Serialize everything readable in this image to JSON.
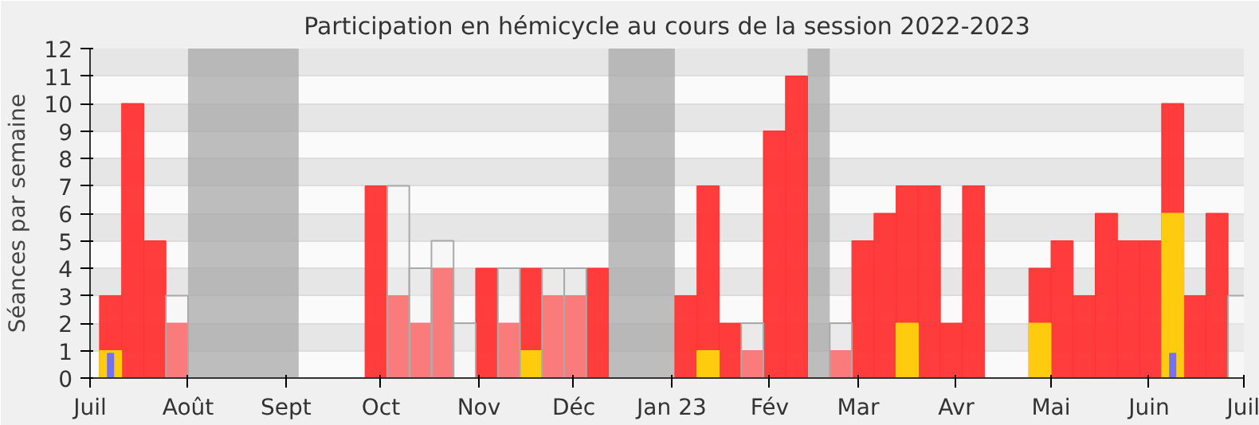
{
  "chart_data": {
    "type": "bar",
    "title": "Participation en hémicycle au cours de la session 2022-2023",
    "ylabel": "Séances par semaine",
    "x": [
      "2022-07-04",
      "2022-07-11",
      "2022-07-18",
      "2022-07-25",
      "2022-08-01",
      "2022-08-08",
      "2022-08-15",
      "2022-08-22",
      "2022-08-29",
      "2022-09-05",
      "2022-09-12",
      "2022-09-19",
      "2022-09-26",
      "2022-10-03",
      "2022-10-10",
      "2022-10-17",
      "2022-10-24",
      "2022-10-31",
      "2022-11-07",
      "2022-11-14",
      "2022-11-21",
      "2022-11-28",
      "2022-12-05",
      "2022-12-12",
      "2022-12-19",
      "2022-12-26",
      "2023-01-02",
      "2023-01-09",
      "2023-01-16",
      "2023-01-23",
      "2023-01-30",
      "2023-02-06",
      "2023-02-13",
      "2023-02-20",
      "2023-02-27",
      "2023-03-06",
      "2023-03-13",
      "2023-03-20",
      "2023-03-27",
      "2023-04-03",
      "2023-04-10",
      "2023-04-17",
      "2023-04-24",
      "2023-05-01",
      "2023-05-08",
      "2023-05-15",
      "2023-05-22",
      "2023-05-29",
      "2023-06-05",
      "2023-06-12",
      "2023-06-19",
      "2023-06-26"
    ],
    "series": [
      {
        "color": "#f2f2f2",
        "values": [
          null,
          null,
          null,
          3,
          null,
          null,
          null,
          null,
          null,
          null,
          null,
          null,
          null,
          7,
          4,
          5,
          2,
          null,
          4,
          null,
          4,
          4,
          null,
          null,
          null,
          null,
          null,
          null,
          null,
          2,
          null,
          null,
          null,
          2,
          null,
          null,
          null,
          null,
          null,
          null,
          null,
          null,
          null,
          null,
          null,
          null,
          null,
          null,
          null,
          null,
          null,
          3
        ]
      },
      {
        "color": "#ff3333",
        "values": [
          3,
          10,
          5,
          2,
          null,
          null,
          null,
          null,
          null,
          0,
          0,
          0,
          7,
          3,
          2,
          4,
          0,
          4,
          2,
          4,
          3,
          3,
          4,
          null,
          null,
          null,
          3,
          7,
          2,
          1,
          9,
          11,
          null,
          1,
          5,
          6,
          7,
          7,
          2,
          7,
          0,
          0,
          4,
          5,
          3,
          6,
          5,
          5,
          10,
          3,
          6,
          0
        ]
      },
      {
        "color": "#ffd30c",
        "values": [
          1,
          null,
          null,
          null,
          null,
          null,
          null,
          null,
          null,
          null,
          null,
          null,
          null,
          null,
          null,
          null,
          null,
          null,
          null,
          1,
          null,
          null,
          null,
          null,
          null,
          null,
          null,
          1,
          null,
          null,
          null,
          null,
          null,
          null,
          null,
          null,
          2,
          null,
          null,
          null,
          null,
          null,
          2,
          null,
          null,
          null,
          null,
          null,
          6,
          null,
          null,
          null
        ]
      },
      {
        "color": "#6b6bff",
        "values": [
          0.9,
          null,
          null,
          null,
          null,
          null,
          null,
          null,
          null,
          null,
          null,
          null,
          null,
          null,
          null,
          null,
          null,
          null,
          null,
          null,
          null,
          null,
          null,
          null,
          null,
          null,
          null,
          null,
          null,
          null,
          null,
          null,
          null,
          null,
          null,
          null,
          null,
          null,
          null,
          null,
          null,
          null,
          null,
          null,
          null,
          null,
          null,
          null,
          0.9,
          null,
          null,
          null
        ]
      }
    ],
    "bands": [
      {
        "axis": "x",
        "from": "2022-08-01",
        "to": "2022-09-05",
        "color": "#a8a8a8"
      },
      {
        "axis": "x",
        "from": "2022-12-12",
        "to": "2023-01-02",
        "color": "#a8a8a8"
      },
      {
        "axis": "x",
        "from": "2023-02-13",
        "to": "2023-02-20",
        "color": "#a8a8a8"
      }
    ],
    "xlim": [
      "2022-07-01",
      "2023-07-01"
    ],
    "xticks": [
      {
        "value": "2022-07-01",
        "label": "Juil"
      },
      {
        "value": "2022-08-01",
        "label": "Août"
      },
      {
        "value": "2022-09-01",
        "label": "Sept"
      },
      {
        "value": "2022-10-01",
        "label": "Oct"
      },
      {
        "value": "2022-11-01",
        "label": "Nov"
      },
      {
        "value": "2022-12-01",
        "label": "Déc"
      },
      {
        "value": "2023-01-01",
        "label": "Jan 23"
      },
      {
        "value": "2023-02-01",
        "label": "Fév"
      },
      {
        "value": "2023-03-01",
        "label": "Mar"
      },
      {
        "value": "2023-04-01",
        "label": "Avr"
      },
      {
        "value": "2023-05-01",
        "label": "Mai"
      },
      {
        "value": "2023-06-01",
        "label": "Juin"
      },
      {
        "value": "2023-07-01",
        "label": "Juil"
      }
    ],
    "ylim": [
      0,
      12
    ],
    "yticks": [
      0,
      1,
      2,
      3,
      4,
      5,
      6,
      7,
      8,
      9,
      10,
      11,
      12
    ],
    "grid": "y"
  }
}
